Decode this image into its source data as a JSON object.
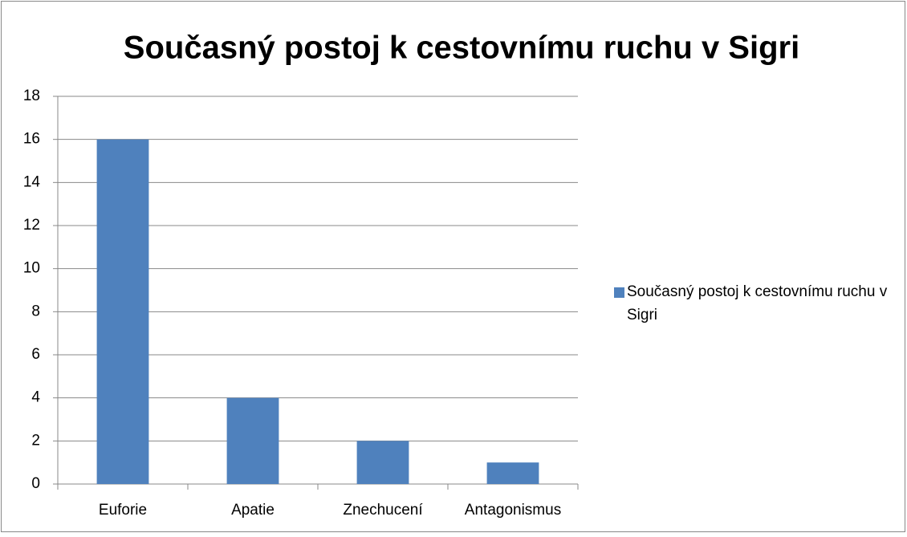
{
  "chart_data": {
    "type": "bar",
    "title": "Současný postoj k cestovnímu ruchu v Sigri",
    "categories": [
      "Euforie",
      "Apatie",
      "Znechucení",
      "Antagonismus"
    ],
    "series": [
      {
        "name": "Současný postoj k cestovnímu ruchu v Sigri",
        "color": "#4f81bd",
        "values": [
          16,
          4,
          2,
          1
        ]
      }
    ],
    "ylim": [
      0,
      18
    ],
    "yticks": [
      0,
      2,
      4,
      6,
      8,
      10,
      12,
      14,
      16,
      18
    ],
    "grid": true,
    "legend": "right"
  }
}
